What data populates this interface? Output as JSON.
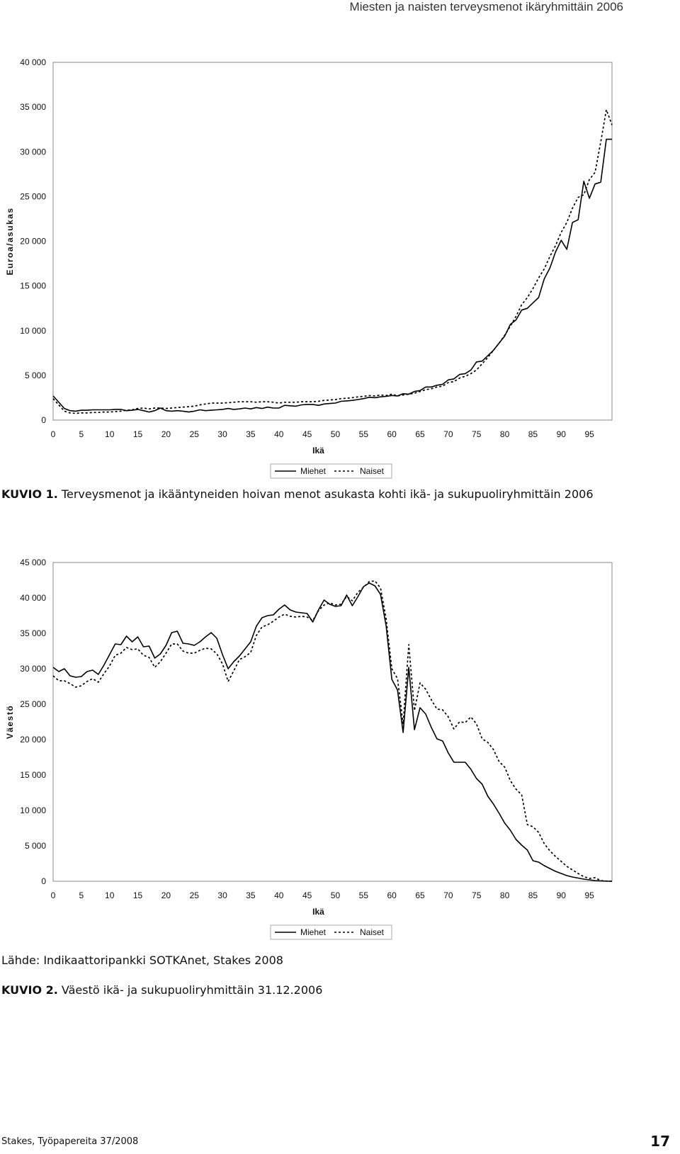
{
  "header": {
    "title": "Miesten ja naisten terveysmenot ikäryhmittäin 2006"
  },
  "figure1": {
    "caption_label": "KUVIO 1.",
    "caption_text": " Terveysmenot ja ikääntyneiden hoivan menot asukasta kohti ikä- ja sukupuoliryhmittäin 2006"
  },
  "figure2": {
    "source": "Lähde: Indikaattoripankki SOTKAnet, Stakes 2008",
    "caption_label": "KUVIO 2.",
    "caption_text": " Väestö ikä- ja sukupuoliryhmittäin 31.12.2006"
  },
  "footer": {
    "left": "Stakes, Työpapereita 37/2008",
    "page_number": "17"
  },
  "chart_data": [
    {
      "type": "line",
      "ylabel": "Euroa/asukas",
      "xlabel": "Ikä",
      "ylim": [
        0,
        40000
      ],
      "xlim": [
        0,
        99
      ],
      "yticks": [
        0,
        5000,
        10000,
        15000,
        20000,
        25000,
        30000,
        35000,
        40000
      ],
      "ytick_labels": [
        "0",
        "5 000",
        "10 000",
        "15 000",
        "20 000",
        "25 000",
        "30 000",
        "35 000",
        "40 000"
      ],
      "xticks": [
        0,
        5,
        10,
        15,
        20,
        25,
        30,
        35,
        40,
        45,
        50,
        55,
        60,
        65,
        70,
        75,
        80,
        85,
        90,
        95
      ],
      "xtick_labels": [
        "0",
        "5",
        "10",
        "15",
        "20",
        "25",
        "30",
        "35",
        "40",
        "45",
        "50",
        "55",
        "60",
        "65",
        "70",
        "75",
        "80",
        "85",
        "90",
        "95"
      ],
      "legend": {
        "placement": "bottom-center"
      },
      "series": [
        {
          "name": "Miehet",
          "style": "solid",
          "color": "#000000",
          "x": [
            0,
            2,
            3,
            4,
            5,
            6,
            7,
            8,
            9,
            10,
            11,
            12,
            13,
            14,
            15,
            16,
            17,
            18,
            19,
            20,
            21,
            22,
            23,
            24,
            25,
            26,
            27,
            28,
            29,
            30,
            31,
            32,
            33,
            34,
            35,
            36,
            37,
            38,
            39,
            40,
            41,
            42,
            43,
            44,
            45,
            46,
            47,
            48,
            49,
            50,
            51,
            52,
            53,
            54,
            55,
            56,
            57,
            58,
            59,
            60,
            61,
            62,
            63,
            64,
            65,
            66,
            67,
            68,
            69,
            70,
            71,
            72,
            73,
            74,
            75,
            76,
            77,
            78,
            79,
            80,
            81,
            82,
            83,
            84,
            85,
            86,
            87,
            88,
            89,
            90,
            91,
            92,
            93,
            94,
            95,
            96,
            97,
            98,
            99
          ],
          "values": [
            2700,
            1300,
            1050,
            1000,
            1100,
            1100,
            1150,
            1150,
            1150,
            1150,
            1200,
            1200,
            1050,
            1100,
            1200,
            1050,
            900,
            1050,
            1350,
            1050,
            1000,
            1050,
            1000,
            900,
            1000,
            1150,
            1050,
            1100,
            1150,
            1200,
            1300,
            1200,
            1250,
            1350,
            1250,
            1400,
            1300,
            1450,
            1350,
            1350,
            1650,
            1600,
            1550,
            1700,
            1750,
            1750,
            1650,
            1800,
            1850,
            1900,
            2100,
            2150,
            2200,
            2300,
            2400,
            2550,
            2500,
            2600,
            2650,
            2750,
            2700,
            2950,
            2900,
            3200,
            3300,
            3700,
            3700,
            3900,
            4000,
            4500,
            4600,
            5100,
            5200,
            5600,
            6500,
            6600,
            7200,
            7800,
            8600,
            9400,
            10700,
            11200,
            12300,
            12500,
            13100,
            13700,
            15800,
            17000,
            18800,
            20100,
            19100,
            22100,
            22400,
            26700,
            24800,
            26400,
            26600,
            31400,
            31400
          ]
        },
        {
          "name": "Naiset",
          "style": "dotted",
          "color": "#000000",
          "x": [
            0,
            2,
            3,
            4,
            5,
            6,
            7,
            8,
            9,
            10,
            11,
            12,
            13,
            14,
            15,
            16,
            17,
            18,
            19,
            20,
            21,
            22,
            23,
            24,
            25,
            26,
            27,
            28,
            29,
            30,
            31,
            32,
            33,
            34,
            35,
            36,
            37,
            38,
            39,
            40,
            41,
            42,
            43,
            44,
            45,
            46,
            47,
            48,
            49,
            50,
            51,
            52,
            53,
            54,
            55,
            56,
            57,
            58,
            59,
            60,
            61,
            62,
            63,
            64,
            65,
            66,
            67,
            68,
            69,
            70,
            71,
            72,
            73,
            74,
            75,
            76,
            77,
            78,
            79,
            80,
            81,
            82,
            83,
            84,
            85,
            86,
            87,
            88,
            89,
            90,
            91,
            92,
            93,
            94,
            95,
            96,
            97,
            98,
            99
          ],
          "values": [
            2400,
            1000,
            800,
            750,
            800,
            800,
            850,
            850,
            900,
            900,
            950,
            1000,
            1100,
            1150,
            1300,
            1350,
            1250,
            1350,
            1350,
            1300,
            1350,
            1400,
            1450,
            1500,
            1550,
            1700,
            1800,
            1900,
            1900,
            1900,
            1950,
            2000,
            2050,
            2050,
            2050,
            2000,
            2050,
            2050,
            2000,
            1900,
            2000,
            2000,
            2000,
            2050,
            2050,
            2050,
            2100,
            2200,
            2250,
            2300,
            2400,
            2450,
            2500,
            2600,
            2650,
            2750,
            2700,
            2800,
            2750,
            2900,
            2700,
            2800,
            2900,
            3000,
            3200,
            3400,
            3500,
            3700,
            3800,
            4200,
            4300,
            4700,
            4900,
            5200,
            5600,
            6300,
            7000,
            7800,
            8600,
            9500,
            10500,
            11600,
            12900,
            13700,
            14700,
            15900,
            16900,
            18300,
            19500,
            21000,
            22100,
            23700,
            24900,
            25200,
            26900,
            27700,
            31100,
            34700,
            33000
          ]
        }
      ]
    },
    {
      "type": "line",
      "ylabel": "Väestö",
      "xlabel": "Ikä",
      "ylim": [
        0,
        45000
      ],
      "xlim": [
        0,
        99
      ],
      "yticks": [
        0,
        5000,
        10000,
        15000,
        20000,
        25000,
        30000,
        35000,
        40000,
        45000
      ],
      "ytick_labels": [
        "0",
        "5 000",
        "10 000",
        "15 000",
        "20 000",
        "25 000",
        "30 000",
        "35 000",
        "40 000",
        "45 000"
      ],
      "xticks": [
        0,
        5,
        10,
        15,
        20,
        25,
        30,
        35,
        40,
        45,
        50,
        55,
        60,
        65,
        70,
        75,
        80,
        85,
        90,
        95
      ],
      "xtick_labels": [
        "0",
        "5",
        "10",
        "15",
        "20",
        "25",
        "30",
        "35",
        "40",
        "45",
        "50",
        "55",
        "60",
        "65",
        "70",
        "75",
        "80",
        "85",
        "90",
        "95"
      ],
      "legend": {
        "placement": "bottom-center"
      },
      "series": [
        {
          "name": "Miehet",
          "style": "solid",
          "color": "#000000",
          "x": [
            0,
            1,
            2,
            3,
            4,
            5,
            6,
            7,
            8,
            9,
            10,
            11,
            12,
            13,
            14,
            15,
            16,
            17,
            18,
            19,
            20,
            21,
            22,
            23,
            24,
            25,
            26,
            27,
            28,
            29,
            30,
            31,
            32,
            33,
            34,
            35,
            36,
            37,
            38,
            39,
            40,
            41,
            42,
            43,
            44,
            45,
            46,
            47,
            48,
            49,
            50,
            51,
            52,
            53,
            54,
            55,
            56,
            57,
            58,
            59,
            60,
            61,
            62,
            63,
            64,
            65,
            66,
            67,
            68,
            69,
            70,
            71,
            72,
            73,
            74,
            75,
            76,
            77,
            78,
            79,
            80,
            81,
            82,
            83,
            84,
            85,
            86,
            87,
            88,
            89,
            90,
            91,
            92,
            93,
            94,
            95,
            96,
            97,
            98,
            99
          ],
          "values": [
            30200,
            29600,
            30000,
            29000,
            28800,
            28900,
            29600,
            29800,
            29200,
            30500,
            32000,
            33500,
            33400,
            34600,
            33800,
            34500,
            33100,
            33200,
            31500,
            32100,
            33300,
            35100,
            35300,
            33600,
            33500,
            33300,
            33800,
            34500,
            35100,
            34300,
            32000,
            30000,
            31000,
            31800,
            32800,
            33800,
            36000,
            37200,
            37500,
            37600,
            38400,
            39000,
            38300,
            38000,
            37900,
            37800,
            36600,
            38300,
            39700,
            39100,
            38800,
            38900,
            40400,
            38900,
            40200,
            41600,
            42100,
            41700,
            40500,
            36000,
            28500,
            27000,
            21000,
            30200,
            21400,
            24500,
            23600,
            21700,
            20100,
            19800,
            18100,
            16800,
            16800,
            16800,
            15800,
            14500,
            13700,
            12000,
            10900,
            9600,
            8200,
            7200,
            5900,
            5100,
            4400,
            2900,
            2700,
            2200,
            1800,
            1400,
            1100,
            800,
            600,
            450,
            300,
            200,
            100,
            50,
            20,
            10
          ]
        },
        {
          "name": "Naiset",
          "style": "dotted",
          "color": "#000000",
          "x": [
            0,
            1,
            2,
            3,
            4,
            5,
            6,
            7,
            8,
            9,
            10,
            11,
            12,
            13,
            14,
            15,
            16,
            17,
            18,
            19,
            20,
            21,
            22,
            23,
            24,
            25,
            26,
            27,
            28,
            29,
            30,
            31,
            32,
            33,
            34,
            35,
            36,
            37,
            38,
            39,
            40,
            41,
            42,
            43,
            44,
            45,
            46,
            47,
            48,
            49,
            50,
            51,
            52,
            53,
            54,
            55,
            56,
            57,
            58,
            59,
            60,
            61,
            62,
            63,
            64,
            65,
            66,
            67,
            68,
            69,
            70,
            71,
            72,
            73,
            74,
            75,
            76,
            77,
            78,
            79,
            80,
            81,
            82,
            83,
            84,
            85,
            86,
            87,
            88,
            89,
            90,
            91,
            92,
            93,
            94,
            95,
            96,
            97,
            98,
            99
          ],
          "values": [
            29000,
            28300,
            28300,
            27900,
            27400,
            27600,
            28200,
            28600,
            28100,
            29300,
            30400,
            31900,
            32200,
            33000,
            32700,
            32800,
            31900,
            31600,
            30200,
            31000,
            32200,
            33500,
            33500,
            32500,
            32200,
            32200,
            32600,
            32900,
            32800,
            32100,
            30700,
            28200,
            29700,
            31300,
            31700,
            32300,
            34700,
            35900,
            36200,
            36700,
            37300,
            37700,
            37400,
            37300,
            37400,
            37300,
            36800,
            38200,
            39000,
            39300,
            39000,
            39100,
            40200,
            39600,
            40800,
            41500,
            42300,
            42400,
            41400,
            37000,
            30000,
            28600,
            22200,
            33400,
            24100,
            28000,
            27100,
            25600,
            24300,
            24200,
            23200,
            21500,
            22500,
            22400,
            23200,
            22200,
            20100,
            19600,
            18600,
            16900,
            16100,
            14200,
            13000,
            12200,
            8000,
            7700,
            6900,
            5300,
            4300,
            3500,
            2800,
            2100,
            1600,
            1100,
            650,
            400,
            500,
            100,
            30,
            10
          ]
        }
      ]
    }
  ]
}
